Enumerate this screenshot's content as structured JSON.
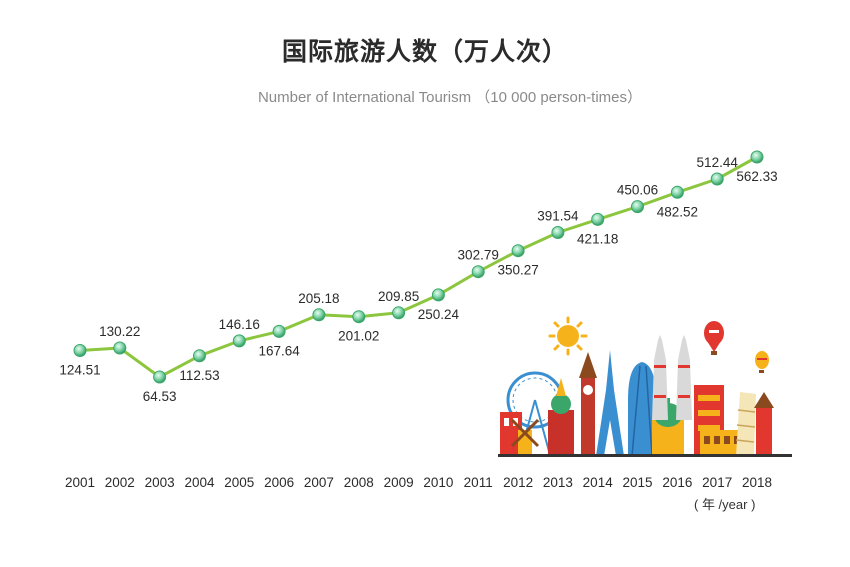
{
  "chart_data": {
    "type": "line",
    "title": "国际旅游人数（万人次）",
    "subtitle": "Number of International Tourism （10 000 person-times）",
    "x_unit_label": "( 年 /year )",
    "categories": [
      "2001",
      "2002",
      "2003",
      "2004",
      "2005",
      "2006",
      "2007",
      "2008",
      "2009",
      "2010",
      "2011",
      "2012",
      "2013",
      "2014",
      "2015",
      "2016",
      "2017",
      "2018"
    ],
    "series": [
      {
        "values": [
          124.51,
          130.22,
          64.53,
          112.53,
          146.16,
          167.64,
          205.18,
          201.02,
          209.85,
          250.24,
          302.79,
          350.27,
          391.54,
          421.18,
          450.06,
          482.52,
          512.44,
          562.33
        ],
        "label_side": [
          "below",
          "above",
          "below",
          "below",
          "above",
          "below",
          "above",
          "below",
          "above",
          "below",
          "above",
          "below",
          "above",
          "below",
          "above",
          "below",
          "above",
          "below"
        ]
      }
    ],
    "ylim": [
      0,
      600
    ],
    "grid": false,
    "legend": "none",
    "colors": {
      "line": "#8cc63f",
      "marker_fill": "#7ed3a6",
      "marker_stroke": "#3aa66a",
      "baseline": "#333333"
    }
  }
}
